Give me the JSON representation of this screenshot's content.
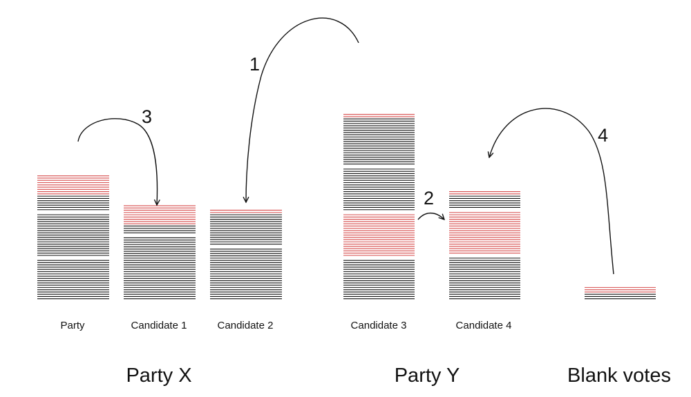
{
  "colors": {
    "vote": "#111111",
    "transferred": "#d64a4a",
    "background": "#ffffff"
  },
  "stacks": [
    {
      "id": "party",
      "label": "Party",
      "segments": [
        {
          "type": "transferred",
          "lines": 9
        },
        {
          "type": "vote",
          "lines": 7
        },
        {
          "type": "gap"
        },
        {
          "type": "vote",
          "lines": 19
        },
        {
          "type": "gap"
        },
        {
          "type": "vote",
          "lines": 18
        }
      ]
    },
    {
      "id": "candidate-1",
      "label": "Candidate 1",
      "segments": [
        {
          "type": "transferred",
          "lines": 9
        },
        {
          "type": "vote",
          "lines": 4
        },
        {
          "type": "gap"
        },
        {
          "type": "vote",
          "lines": 28
        }
      ]
    },
    {
      "id": "candidate-2",
      "label": "Candidate 2",
      "segments": [
        {
          "type": "transferred",
          "lines": 2
        },
        {
          "type": "vote",
          "lines": 14
        },
        {
          "type": "gap"
        },
        {
          "type": "vote",
          "lines": 23
        }
      ]
    },
    {
      "id": "candidate-3",
      "label": "Candidate 3",
      "segments": [
        {
          "type": "transferred",
          "lines": 2
        },
        {
          "type": "vote",
          "lines": 21
        },
        {
          "type": "gap"
        },
        {
          "type": "vote",
          "lines": 19
        },
        {
          "type": "gap"
        },
        {
          "type": "transferred",
          "lines": 19
        },
        {
          "type": "gap"
        },
        {
          "type": "vote",
          "lines": 18
        }
      ]
    },
    {
      "id": "candidate-4",
      "label": "Candidate 4",
      "segments": [
        {
          "type": "transferred",
          "lines": 2
        },
        {
          "type": "vote",
          "lines": 6
        },
        {
          "type": "gap"
        },
        {
          "type": "transferred",
          "lines": 19
        },
        {
          "type": "gap"
        },
        {
          "type": "vote",
          "lines": 19
        }
      ]
    },
    {
      "id": "blank-votes",
      "label": "",
      "segments": [
        {
          "type": "transferred",
          "lines": 3
        },
        {
          "type": "vote",
          "lines": 3
        }
      ]
    }
  ],
  "groups": [
    {
      "id": "party-x",
      "label": "Party X"
    },
    {
      "id": "party-y",
      "label": "Party Y"
    },
    {
      "id": "blank-votes",
      "label": "Blank votes"
    }
  ],
  "transfers": [
    {
      "id": "transfer-1",
      "step": "1",
      "from": "candidate-3",
      "to": "candidate-2"
    },
    {
      "id": "transfer-2",
      "step": "2",
      "from": "candidate-3",
      "to": "candidate-4"
    },
    {
      "id": "transfer-3",
      "step": "3",
      "from": "party",
      "to": "candidate-1"
    },
    {
      "id": "transfer-4",
      "step": "4",
      "from": "blank-votes",
      "to": "candidate-4"
    }
  ]
}
